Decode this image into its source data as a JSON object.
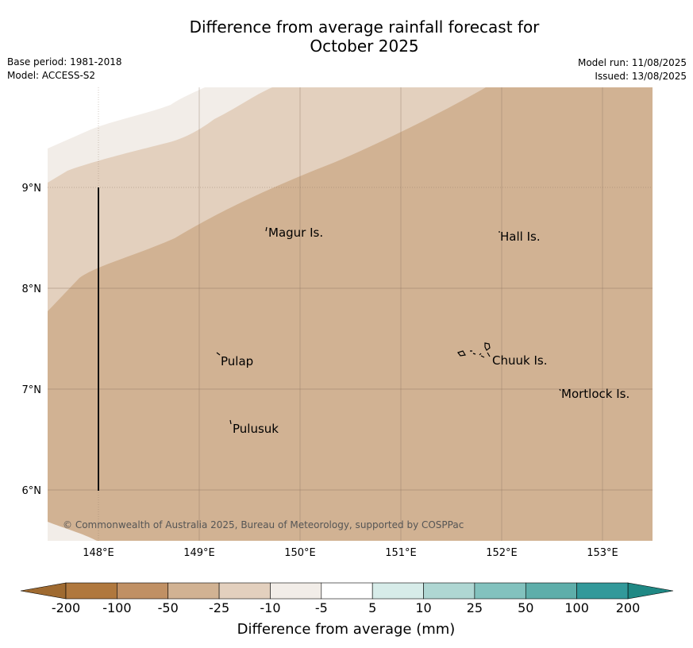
{
  "title": "Difference from average rainfall forecast for\nOctober 2025",
  "base_period": "Base period: 1981-2018",
  "model": "Model: ACCESS-S2",
  "model_run": "Model run: 11/08/2025",
  "issued": "Issued: 13/08/2025",
  "copyright": "© Commonwealth of Australia 2025, Bureau of Meteorology, supported by COSPPac",
  "map": {
    "lon_range": [
      147.5,
      153.5
    ],
    "lat_range": [
      5.5,
      10.0
    ],
    "lon_ticks": [
      "148°E",
      "149°E",
      "150°E",
      "151°E",
      "152°E",
      "153°E"
    ],
    "lat_ticks": [
      "9°N",
      "8°N",
      "7°N",
      "6°N"
    ],
    "background_category": "-50 to -25",
    "places": [
      {
        "name": "Magur Is.",
        "lon": 149.67,
        "lat": 8.55
      },
      {
        "name": "Hall Is.",
        "lon": 151.98,
        "lat": 8.52
      },
      {
        "name": "Pulap",
        "lon": 149.2,
        "lat": 7.3
      },
      {
        "name": "Chuuk Is.",
        "lon": 151.85,
        "lat": 7.4
      },
      {
        "name": "Mortlock Is.",
        "lon": 152.6,
        "lat": 6.95
      },
      {
        "name": "Pulusuk",
        "lon": 149.3,
        "lat": 6.6
      }
    ]
  },
  "colorbar": {
    "title": "Difference from average (mm)",
    "labels": [
      "-200",
      "-100",
      "-50",
      "-25",
      "-10",
      "-5",
      "5",
      "10",
      "25",
      "50",
      "100",
      "200"
    ],
    "colors": [
      "#b0783e",
      "#c09064",
      "#d1b293",
      "#e3d0be",
      "#f2ede8",
      "#ffffff",
      "#d7ece9",
      "#afd7d3",
      "#82c2be",
      "#5eaeaa",
      "#32999a"
    ],
    "extend_low_color": "#9f6a30",
    "extend_high_color": "#1f8884"
  }
}
